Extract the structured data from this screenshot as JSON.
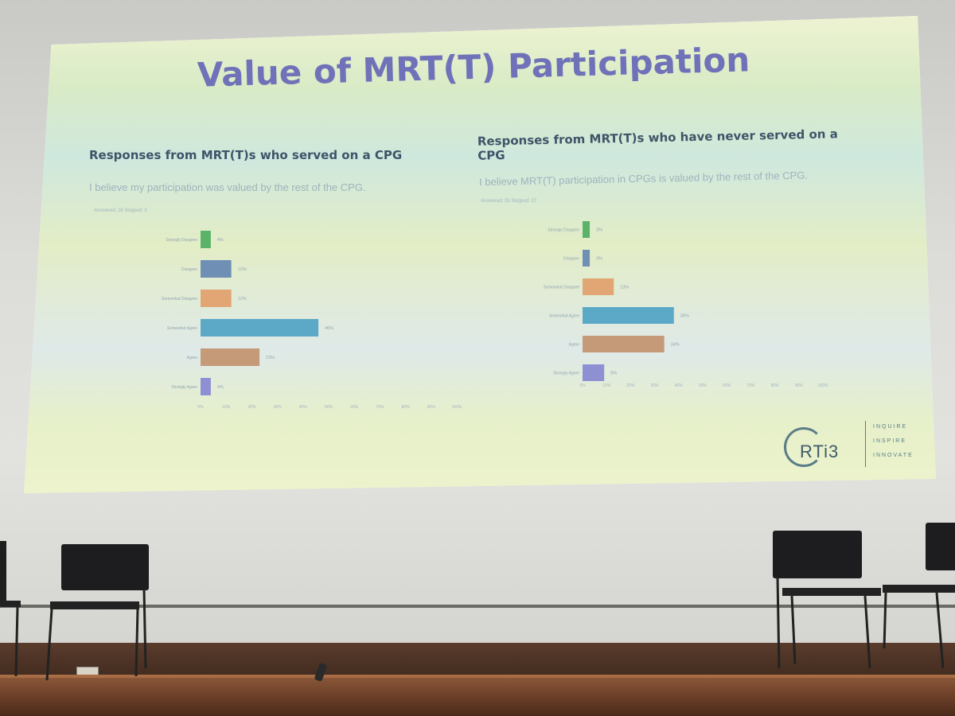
{
  "slide": {
    "title": "Value of MRT(T) Participation",
    "left": {
      "heading": "Responses from MRT(T)s who served on a CPG",
      "question": "I believe my participation was valued by the rest of the CPG.",
      "meta": "Answered: 26    Skipped: 0"
    },
    "right": {
      "heading_line1": "Responses from MRT(T)s who have never served on a",
      "heading_line2": "CPG",
      "question": "I believe MRT(T) participation in CPGs is valued by the rest of the CPG.",
      "meta": "Answered: 35    Skipped: 27"
    },
    "logo": {
      "name": "RTi3",
      "tagline": [
        "INQUIRE",
        "INSPIRE",
        "INNOVATE"
      ]
    }
  },
  "chart_data": [
    {
      "type": "bar",
      "orientation": "horizontal",
      "categories": [
        "Strongly Disagree",
        "Disagree",
        "Somewhat Disagree",
        "Somewhat Agree",
        "Agree",
        "Strongly Agree"
      ],
      "values": [
        4,
        12,
        12,
        46,
        23,
        4
      ],
      "value_labels": [
        "4%",
        "12%",
        "12%",
        "46%",
        "23%",
        "4%"
      ],
      "colors": [
        "#5bb36a",
        "#6f8fb5",
        "#e1a673",
        "#5ba9c6",
        "#c49a78",
        "#8e90d4"
      ],
      "xlim": [
        0,
        100
      ],
      "xticks": [
        "0%",
        "10%",
        "20%",
        "30%",
        "40%",
        "50%",
        "60%",
        "70%",
        "80%",
        "90%",
        "100%"
      ]
    },
    {
      "type": "bar",
      "orientation": "horizontal",
      "categories": [
        "Strongly Disagree",
        "Disagree",
        "Somewhat Disagree",
        "Somewhat Agree",
        "Agree",
        "Strongly Agree"
      ],
      "values": [
        3,
        3,
        13,
        38,
        34,
        9
      ],
      "value_labels": [
        "3%",
        "3%",
        "13%",
        "38%",
        "34%",
        "9%"
      ],
      "colors": [
        "#5bb36a",
        "#6f8fb5",
        "#e1a673",
        "#5ba9c6",
        "#c49a78",
        "#8e90d4"
      ],
      "xlim": [
        0,
        100
      ],
      "xticks": [
        "0%",
        "10%",
        "20%",
        "30%",
        "40%",
        "50%",
        "60%",
        "70%",
        "80%",
        "90%",
        "100%"
      ]
    }
  ]
}
